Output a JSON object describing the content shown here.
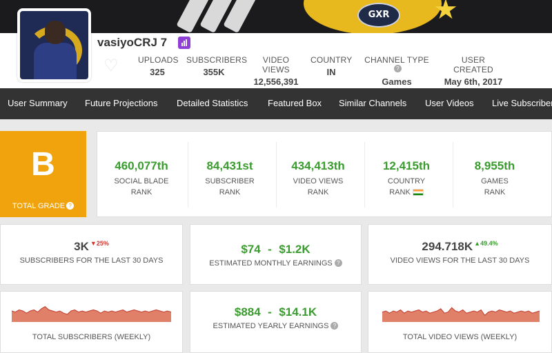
{
  "channel": {
    "name": "vasiyoCRJ 7",
    "banner_logo_text": "GXR"
  },
  "header_stats": [
    {
      "label": "UPLOADS",
      "value": "325"
    },
    {
      "label": "SUBSCRIBERS",
      "value": "355K"
    },
    {
      "label": "VIDEO VIEWS",
      "value": "12,556,391"
    },
    {
      "label": "COUNTRY",
      "value": "IN"
    },
    {
      "label": "CHANNEL TYPE",
      "value": "Games"
    },
    {
      "label": "USER CREATED",
      "value": "May 6th, 2017"
    }
  ],
  "nav": [
    "User Summary",
    "Future Projections",
    "Detailed Statistics",
    "Featured Box",
    "Similar Channels",
    "User Videos",
    "Live Subscriber"
  ],
  "grade": {
    "letter": "B",
    "label": "TOTAL GRADE",
    "color": "#f0a30c"
  },
  "ranks": [
    {
      "value": "460,077th",
      "line1": "SOCIAL BLADE",
      "line2": "RANK"
    },
    {
      "value": "84,431st",
      "line1": "SUBSCRIBER",
      "line2": "RANK"
    },
    {
      "value": "434,413th",
      "line1": "VIDEO VIEWS",
      "line2": "RANK"
    },
    {
      "value": "12,415th",
      "line1": "COUNTRY",
      "line2": "RANK"
    },
    {
      "value": "8,955th",
      "line1": "GAMES",
      "line2": "RANK"
    }
  ],
  "summary": {
    "subscribers_30d": {
      "value": "3K",
      "delta": "25%",
      "caption": "SUBSCRIBERS FOR THE LAST 30 DAYS"
    },
    "monthly_earnings": {
      "low": "$74",
      "sep": "-",
      "high": "$1.2K",
      "caption": "ESTIMATED MONTHLY EARNINGS"
    },
    "views_30d": {
      "value": "294.718K",
      "delta": "49.4%",
      "caption": "VIDEO VIEWS FOR THE LAST 30 DAYS"
    },
    "yearly_earnings": {
      "low": "$884",
      "sep": "-",
      "high": "$14.1K",
      "caption": "ESTIMATED YEARLY EARNINGS"
    },
    "subs_weekly_caption": "TOTAL SUBSCRIBERS (WEEKLY)",
    "views_weekly_caption": "TOTAL VIDEO VIEWS (WEEKLY)"
  },
  "colors": {
    "accent_green": "#3a9b2f",
    "down_red": "#d0342c",
    "nav_bg": "#333333",
    "sparkline_fill": "#e08068",
    "sparkline_line": "#c0392b"
  },
  "sparklines": {
    "subscribers_weekly": [
      5,
      4,
      6,
      5,
      3,
      5,
      6,
      4,
      7,
      9,
      6,
      5,
      4,
      5,
      3,
      2,
      5,
      6,
      4,
      5,
      4,
      5,
      6,
      5,
      3,
      5,
      4,
      5,
      4,
      5,
      6,
      4,
      5,
      6,
      5,
      4,
      5,
      4,
      5,
      6,
      5,
      4,
      5,
      4
    ],
    "views_weekly": [
      4,
      5,
      3,
      5,
      4,
      6,
      3,
      5,
      4,
      5,
      6,
      4,
      5,
      3,
      4,
      5,
      7,
      3,
      4,
      8,
      5,
      4,
      6,
      3,
      4,
      5,
      4,
      6,
      1,
      4,
      5,
      4,
      6,
      5,
      4,
      5,
      3,
      4,
      5,
      4,
      5,
      3,
      4,
      5
    ]
  }
}
